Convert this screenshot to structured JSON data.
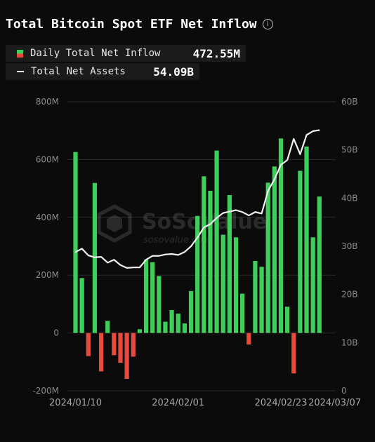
{
  "header": {
    "title": "Total Bitcoin Spot ETF Net Inflow",
    "info_icon": "info-circle-icon"
  },
  "legend": [
    {
      "label": "Daily Total Net Inflow",
      "value": "472.55M",
      "swatch": "bar"
    },
    {
      "label": "Total Net Assets",
      "value": "54.09B",
      "swatch": "line"
    }
  ],
  "colors": {
    "positive": "#3ecf5a",
    "negative": "#e84a3d",
    "line": "#f0f0f0",
    "background": "#0b0b0b",
    "grid": "#2a2a2a"
  },
  "chart_data": {
    "type": "bar",
    "grid": true,
    "watermark": [
      "SoSoValue",
      "sosovalue.com"
    ],
    "y_left": {
      "ticks": [
        "800M",
        "600M",
        "400M",
        "200M",
        "0",
        "-200M"
      ],
      "ylim": [
        -200,
        800
      ],
      "unit": "M"
    },
    "y_right": {
      "ticks": [
        "60B",
        "50B",
        "40B",
        "30B",
        "20B",
        "10B",
        "0"
      ],
      "ylim": [
        0,
        60
      ],
      "unit": "B"
    },
    "x_tick_labels": [
      "2024/01/10",
      "2024/02/01",
      "2024/02/23",
      "2024/03/07"
    ],
    "x_tick_index": [
      0,
      16,
      32,
      41
    ],
    "series": [
      {
        "name": "Daily Total Net Inflow",
        "type": "bar",
        "values": [
          626,
          190,
          -80,
          519,
          -133,
          42,
          -77,
          -103,
          -159,
          -82,
          13,
          254,
          245,
          197,
          39,
          79,
          67,
          33,
          145,
          405,
          542,
          492,
          631,
          340,
          477,
          331,
          136,
          -40,
          249,
          229,
          520,
          576,
          673,
          91,
          -140,
          561,
          645,
          331,
          472
        ]
      },
      {
        "name": "Total Net Assets",
        "type": "line",
        "values": [
          28.8,
          29.5,
          28.1,
          27.7,
          27.8,
          26.6,
          27.2,
          26.1,
          25.5,
          25.6,
          25.6,
          27.2,
          28.0,
          28.0,
          28.3,
          28.4,
          28.2,
          28.8,
          30.0,
          31.8,
          33.9,
          34.6,
          35.9,
          36.9,
          37.2,
          37.5,
          37.1,
          36.4,
          37.1,
          36.8,
          41.5,
          43.9,
          46.9,
          47.9,
          52.3,
          49.1,
          53.1,
          53.9,
          54.1
        ]
      }
    ]
  }
}
